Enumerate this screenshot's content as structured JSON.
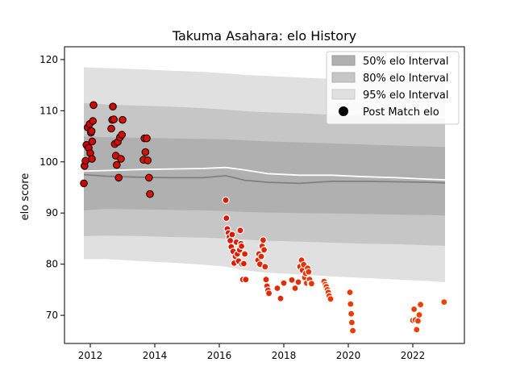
{
  "chart_data": {
    "type": "scatter",
    "title": "Takuma Asahara: elo History",
    "xlabel": "",
    "ylabel": "elo score",
    "xlim": [
      2011.2,
      2023.6
    ],
    "ylim": [
      64.5,
      122.5
    ],
    "xticks": [
      2012,
      2014,
      2016,
      2018,
      2020,
      2022
    ],
    "yticks": [
      70,
      80,
      90,
      100,
      110,
      120
    ],
    "grid": false,
    "legend": {
      "placement": "top-right",
      "entries": [
        "50% elo Interval",
        "80% elo Interval",
        "95% elo Interval",
        "Post Match elo"
      ]
    },
    "colors": {
      "band50": "#b0b0b0",
      "band80": "#c6c6c6",
      "band95": "#e0e0e0",
      "median_line": "#808080",
      "mean_line": "#ffffff",
      "point_fill_start": "#d00000",
      "point_fill_end": "#f04000",
      "point_edge_old": "#000000",
      "point_edge_new": "#ffffff"
    },
    "bands": {
      "x": [
        2011.8,
        2012.5,
        2013.5,
        2014.5,
        2015.5,
        2016.2,
        2016.8,
        2017.5,
        2018.5,
        2019.5,
        2020.5,
        2021.5,
        2022.5,
        2023.0
      ],
      "p95_low": [
        81.0,
        81.0,
        80.6,
        80.3,
        79.9,
        79.5,
        78.8,
        78.3,
        78.0,
        77.6,
        77.3,
        77.0,
        76.7,
        76.5
      ],
      "p95_high": [
        118.5,
        118.3,
        118.1,
        117.8,
        117.6,
        117.3,
        117.0,
        116.8,
        116.5,
        116.2,
        116.0,
        115.8,
        115.5,
        115.3
      ],
      "p80_low": [
        85.5,
        85.6,
        85.5,
        85.3,
        85.2,
        85.0,
        84.8,
        84.6,
        84.4,
        84.2,
        84.0,
        83.9,
        83.7,
        83.6
      ],
      "p80_high": [
        111.5,
        111.2,
        111.0,
        110.8,
        110.5,
        110.2,
        109.9,
        109.7,
        109.5,
        109.2,
        109.0,
        108.8,
        108.6,
        108.4
      ],
      "p50_low": [
        90.5,
        90.8,
        90.7,
        90.6,
        90.5,
        90.4,
        90.2,
        90.1,
        90.0,
        89.9,
        89.8,
        89.7,
        89.6,
        89.5
      ],
      "p50_high": [
        105.0,
        104.8,
        104.7,
        104.6,
        104.5,
        104.4,
        104.2,
        104.0,
        103.8,
        103.6,
        103.4,
        103.2,
        103.0,
        102.9
      ],
      "median": [
        97.5,
        97.2,
        97.0,
        96.9,
        96.9,
        97.3,
        96.4,
        96.0,
        95.8,
        96.2,
        96.2,
        96.1,
        96.0,
        95.9
      ],
      "mean": [
        98.2,
        98.3,
        98.5,
        98.6,
        98.7,
        98.9,
        98.4,
        97.7,
        97.4,
        97.4,
        97.1,
        96.9,
        96.6,
        96.5
      ]
    },
    "points": [
      {
        "x": 2011.8,
        "y": 95.8
      },
      {
        "x": 2011.82,
        "y": 99.2
      },
      {
        "x": 2011.85,
        "y": 100.2
      },
      {
        "x": 2011.88,
        "y": 103.3
      },
      {
        "x": 2011.92,
        "y": 106.7
      },
      {
        "x": 2011.95,
        "y": 102.7
      },
      {
        "x": 2011.98,
        "y": 107.4
      },
      {
        "x": 2012.0,
        "y": 101.7
      },
      {
        "x": 2012.02,
        "y": 105.7
      },
      {
        "x": 2012.04,
        "y": 106.0
      },
      {
        "x": 2012.05,
        "y": 100.6
      },
      {
        "x": 2012.06,
        "y": 104.0
      },
      {
        "x": 2012.08,
        "y": 108.0
      },
      {
        "x": 2012.1,
        "y": 111.1
      },
      {
        "x": 2012.65,
        "y": 106.5
      },
      {
        "x": 2012.68,
        "y": 108.2
      },
      {
        "x": 2012.7,
        "y": 110.8
      },
      {
        "x": 2012.73,
        "y": 108.3
      },
      {
        "x": 2012.76,
        "y": 103.5
      },
      {
        "x": 2012.79,
        "y": 101.2
      },
      {
        "x": 2012.82,
        "y": 99.4
      },
      {
        "x": 2012.85,
        "y": 103.9
      },
      {
        "x": 2012.88,
        "y": 96.9
      },
      {
        "x": 2012.92,
        "y": 104.8
      },
      {
        "x": 2012.95,
        "y": 100.6
      },
      {
        "x": 2012.98,
        "y": 105.3
      },
      {
        "x": 2013.0,
        "y": 108.2
      },
      {
        "x": 2013.65,
        "y": 100.4
      },
      {
        "x": 2013.68,
        "y": 104.6
      },
      {
        "x": 2013.71,
        "y": 101.9
      },
      {
        "x": 2013.75,
        "y": 104.6
      },
      {
        "x": 2013.78,
        "y": 100.3
      },
      {
        "x": 2013.82,
        "y": 96.9
      },
      {
        "x": 2013.85,
        "y": 93.7
      },
      {
        "x": 2016.2,
        "y": 92.5
      },
      {
        "x": 2016.22,
        "y": 89.0
      },
      {
        "x": 2016.25,
        "y": 86.9
      },
      {
        "x": 2016.28,
        "y": 86.1
      },
      {
        "x": 2016.31,
        "y": 85.3
      },
      {
        "x": 2016.34,
        "y": 84.6
      },
      {
        "x": 2016.37,
        "y": 83.4
      },
      {
        "x": 2016.4,
        "y": 85.8
      },
      {
        "x": 2016.43,
        "y": 82.5
      },
      {
        "x": 2016.46,
        "y": 80.2
      },
      {
        "x": 2016.5,
        "y": 81.5
      },
      {
        "x": 2016.53,
        "y": 84.3
      },
      {
        "x": 2016.56,
        "y": 82.0
      },
      {
        "x": 2016.6,
        "y": 80.6
      },
      {
        "x": 2016.63,
        "y": 82.8
      },
      {
        "x": 2016.65,
        "y": 86.6
      },
      {
        "x": 2016.67,
        "y": 84.0
      },
      {
        "x": 2016.69,
        "y": 83.5
      },
      {
        "x": 2016.71,
        "y": 80.0
      },
      {
        "x": 2016.73,
        "y": 77.0
      },
      {
        "x": 2016.76,
        "y": 80.1
      },
      {
        "x": 2016.79,
        "y": 82.0
      },
      {
        "x": 2016.82,
        "y": 77.0
      },
      {
        "x": 2017.2,
        "y": 80.8
      },
      {
        "x": 2017.23,
        "y": 82.0
      },
      {
        "x": 2017.26,
        "y": 80.0
      },
      {
        "x": 2017.3,
        "y": 81.5
      },
      {
        "x": 2017.33,
        "y": 83.5
      },
      {
        "x": 2017.36,
        "y": 84.7
      },
      {
        "x": 2017.39,
        "y": 82.8
      },
      {
        "x": 2017.42,
        "y": 79.5
      },
      {
        "x": 2017.45,
        "y": 77.0
      },
      {
        "x": 2017.48,
        "y": 75.7
      },
      {
        "x": 2017.51,
        "y": 74.9
      },
      {
        "x": 2017.54,
        "y": 74.3
      },
      {
        "x": 2017.8,
        "y": 75.3
      },
      {
        "x": 2017.9,
        "y": 73.3
      },
      {
        "x": 2018.0,
        "y": 76.3
      },
      {
        "x": 2018.25,
        "y": 76.9
      },
      {
        "x": 2018.35,
        "y": 75.3
      },
      {
        "x": 2018.45,
        "y": 76.5
      },
      {
        "x": 2018.5,
        "y": 79.5
      },
      {
        "x": 2018.55,
        "y": 80.8
      },
      {
        "x": 2018.58,
        "y": 78.8
      },
      {
        "x": 2018.62,
        "y": 79.9
      },
      {
        "x": 2018.65,
        "y": 77.4
      },
      {
        "x": 2018.68,
        "y": 78.2
      },
      {
        "x": 2018.71,
        "y": 76.3
      },
      {
        "x": 2018.74,
        "y": 79.2
      },
      {
        "x": 2018.77,
        "y": 78.5
      },
      {
        "x": 2018.8,
        "y": 77.0
      },
      {
        "x": 2018.83,
        "y": 76.2
      },
      {
        "x": 2018.86,
        "y": 76.2
      },
      {
        "x": 2019.25,
        "y": 76.6
      },
      {
        "x": 2019.29,
        "y": 76.0
      },
      {
        "x": 2019.32,
        "y": 75.6
      },
      {
        "x": 2019.35,
        "y": 75.0
      },
      {
        "x": 2019.38,
        "y": 74.5
      },
      {
        "x": 2019.41,
        "y": 73.8
      },
      {
        "x": 2019.45,
        "y": 73.2
      },
      {
        "x": 2020.05,
        "y": 74.5
      },
      {
        "x": 2020.07,
        "y": 72.2
      },
      {
        "x": 2020.09,
        "y": 70.3
      },
      {
        "x": 2020.11,
        "y": 68.6
      },
      {
        "x": 2020.14,
        "y": 67.0
      },
      {
        "x": 2022.0,
        "y": 69.0
      },
      {
        "x": 2022.04,
        "y": 71.2
      },
      {
        "x": 2022.08,
        "y": 69.1
      },
      {
        "x": 2022.12,
        "y": 67.2
      },
      {
        "x": 2022.16,
        "y": 68.9
      },
      {
        "x": 2022.2,
        "y": 70.1
      },
      {
        "x": 2022.24,
        "y": 72.1
      },
      {
        "x": 2022.97,
        "y": 72.6
      }
    ]
  }
}
